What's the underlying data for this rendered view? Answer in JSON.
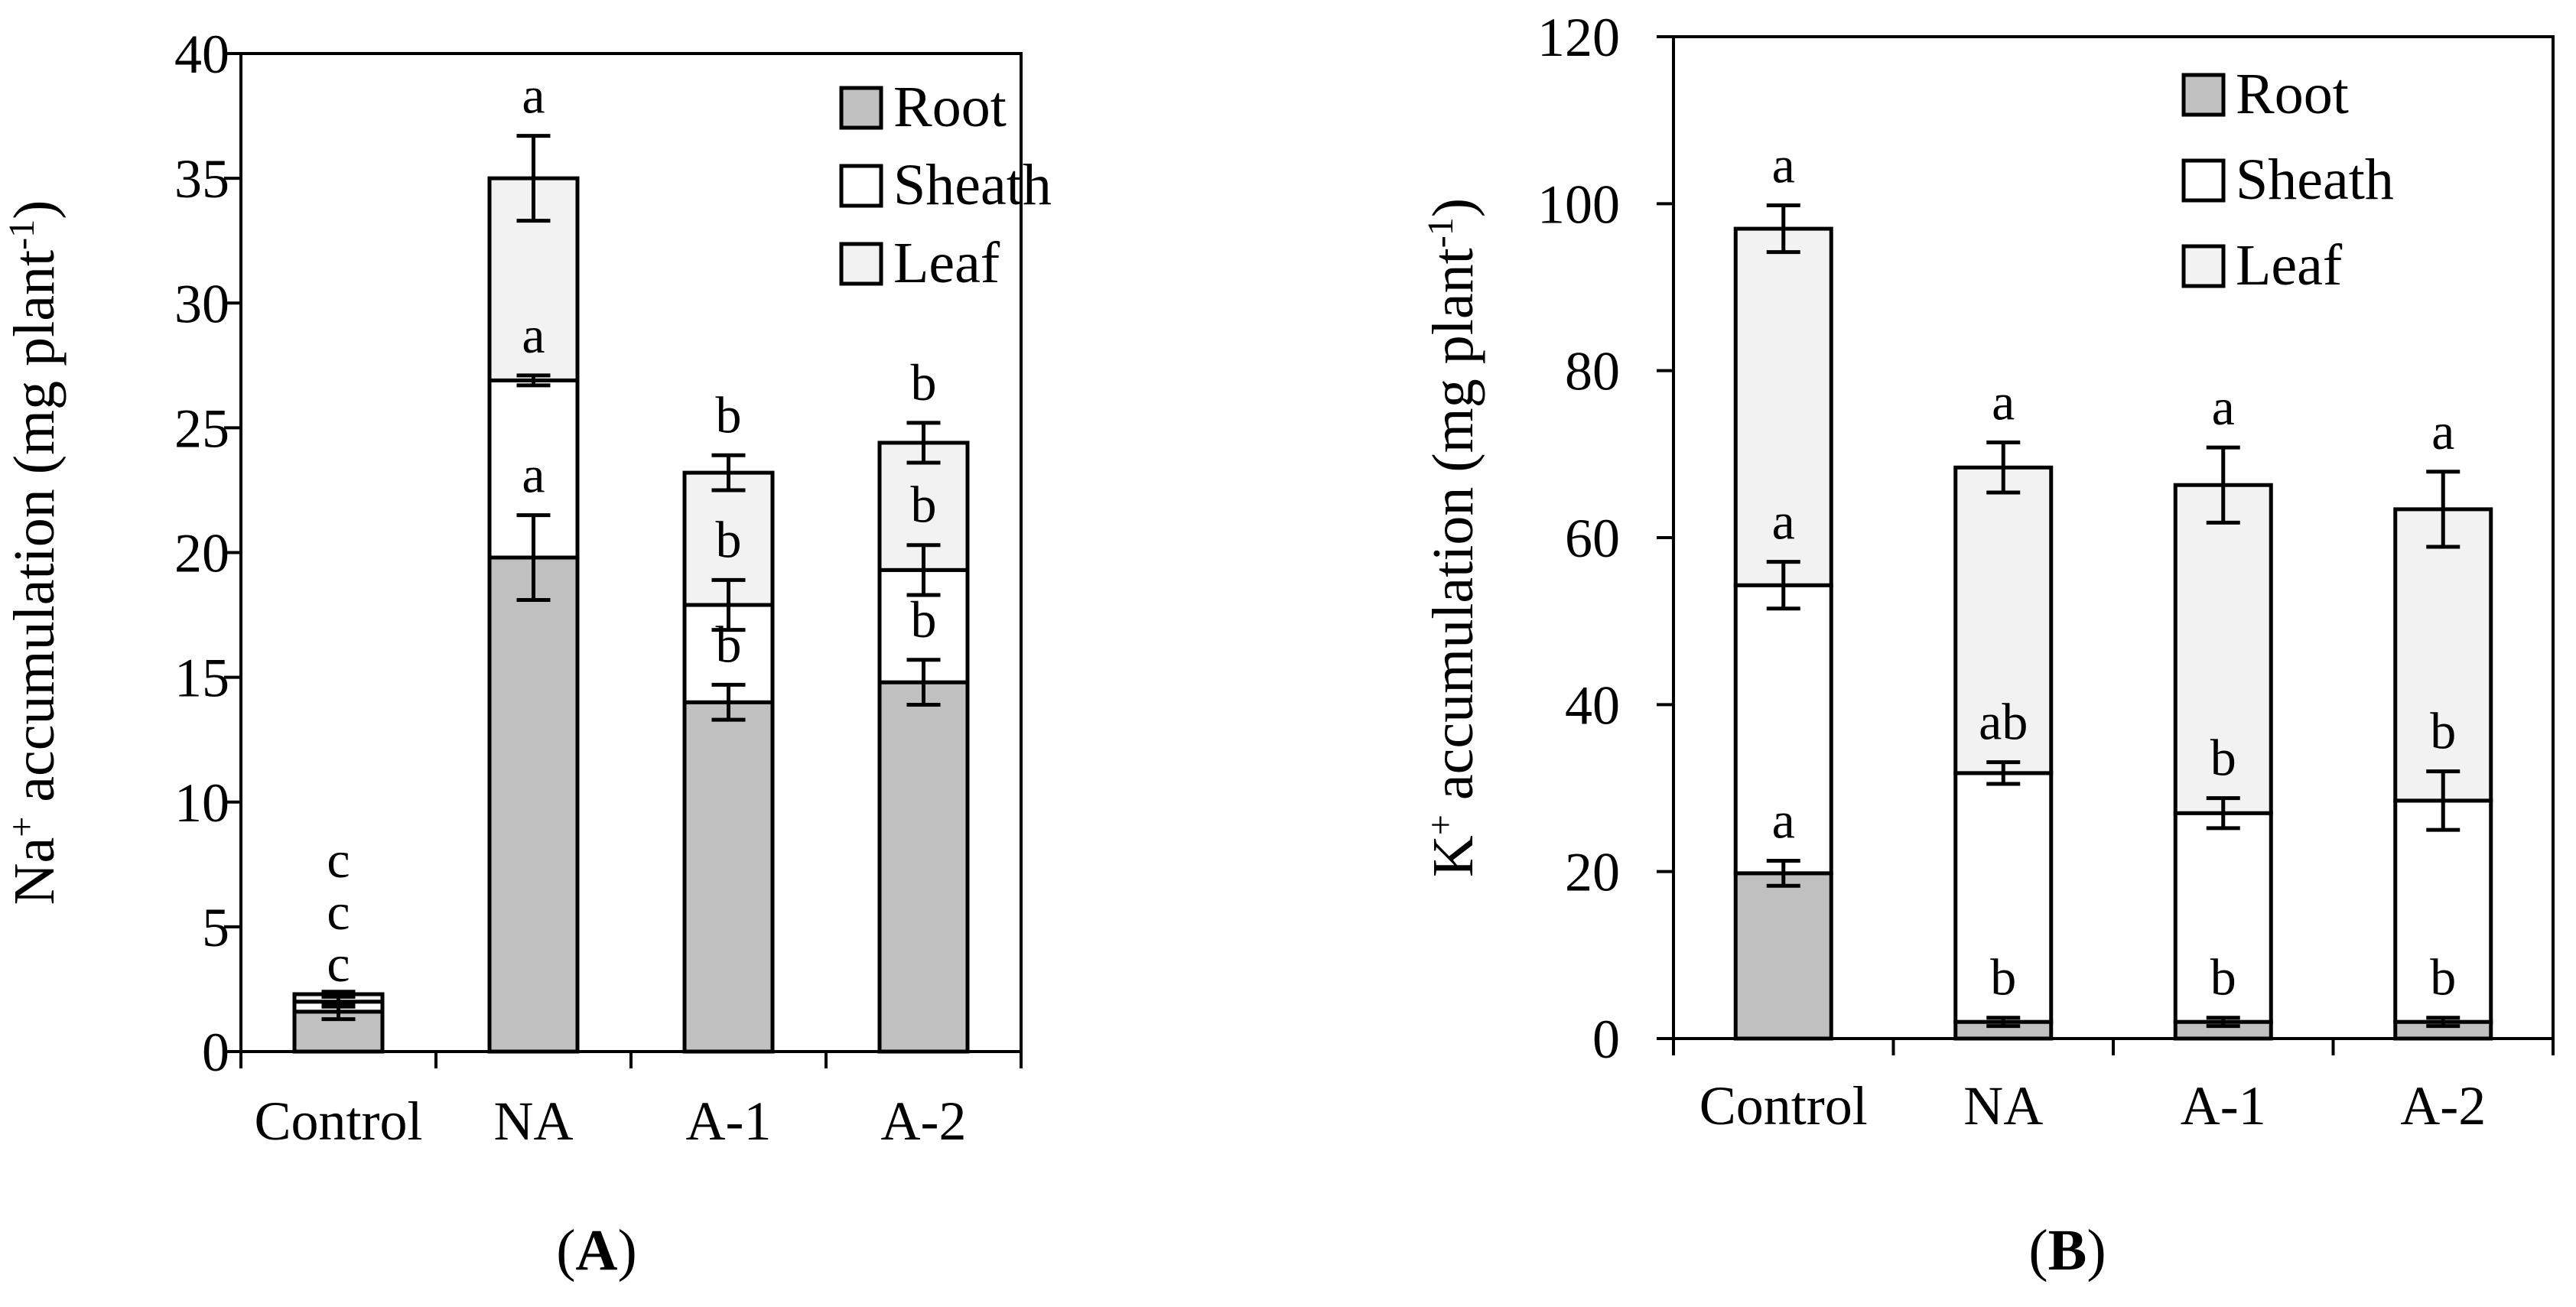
{
  "colors": {
    "root": "#c0c0c0",
    "sheath": "#ffffff",
    "leaf": "#f2f2f2",
    "axis": "#000000"
  },
  "chart_data": [
    {
      "type": "bar",
      "stacked": true,
      "panel_label": "A",
      "categories": [
        "Control",
        "NA",
        "A-1",
        "A-2"
      ],
      "ylabel_main": "Na",
      "ylabel_sup": "+",
      "ylabel_rest": " accumulation (mg plant",
      "ylabel_unit_sup": "-1",
      "ylabel_close": ")",
      "ylim": [
        0,
        40
      ],
      "yticks": [
        0,
        5,
        10,
        15,
        20,
        25,
        30,
        35,
        40
      ],
      "legend_position": "top-right",
      "legend": [
        "Root",
        "Sheath",
        "Leaf"
      ],
      "series": [
        {
          "name": "Root",
          "values": [
            1.6,
            19.8,
            14.0,
            14.8
          ],
          "errors": [
            0.3,
            1.7,
            0.7,
            0.9
          ],
          "letters": [
            "c",
            "a",
            "b",
            "b"
          ]
        },
        {
          "name": "Sheath",
          "values": [
            0.4,
            7.1,
            3.9,
            4.5
          ],
          "errors": [
            0.2,
            0.2,
            1.0,
            1.0
          ],
          "letters": [
            "c",
            "a",
            "b",
            "b"
          ]
        },
        {
          "name": "Leaf",
          "values": [
            0.3,
            8.1,
            5.3,
            5.1
          ],
          "errors": [
            0.1,
            1.7,
            0.7,
            0.8
          ],
          "letters": [
            "c",
            "a",
            "b",
            "b"
          ]
        }
      ]
    },
    {
      "type": "bar",
      "stacked": true,
      "panel_label": "B",
      "categories": [
        "Control",
        "NA",
        "A-1",
        "A-2"
      ],
      "ylabel_main": "K",
      "ylabel_sup": "+",
      "ylabel_rest": " accumulation (mg plant",
      "ylabel_unit_sup": "-1",
      "ylabel_close": ")",
      "ylim": [
        0,
        120
      ],
      "yticks": [
        0,
        20,
        40,
        60,
        80,
        100,
        120
      ],
      "legend_position": "top-right",
      "legend": [
        "Root",
        "Sheath",
        "Leaf"
      ],
      "series": [
        {
          "name": "Root",
          "values": [
            19.8,
            2.0,
            2.0,
            2.0
          ],
          "errors": [
            1.5,
            0.5,
            0.5,
            0.5
          ],
          "letters": [
            "a",
            "b",
            "b",
            "b"
          ]
        },
        {
          "name": "Sheath",
          "values": [
            34.5,
            29.8,
            25.0,
            26.5
          ],
          "errors": [
            2.8,
            1.3,
            1.8,
            3.5
          ],
          "letters": [
            "a",
            "ab",
            "b",
            "b"
          ]
        },
        {
          "name": "Leaf",
          "values": [
            42.7,
            36.6,
            39.3,
            34.9
          ],
          "errors": [
            2.8,
            3.0,
            4.5,
            4.5
          ],
          "letters": [
            "a",
            "a",
            "a",
            "a"
          ]
        }
      ]
    }
  ]
}
